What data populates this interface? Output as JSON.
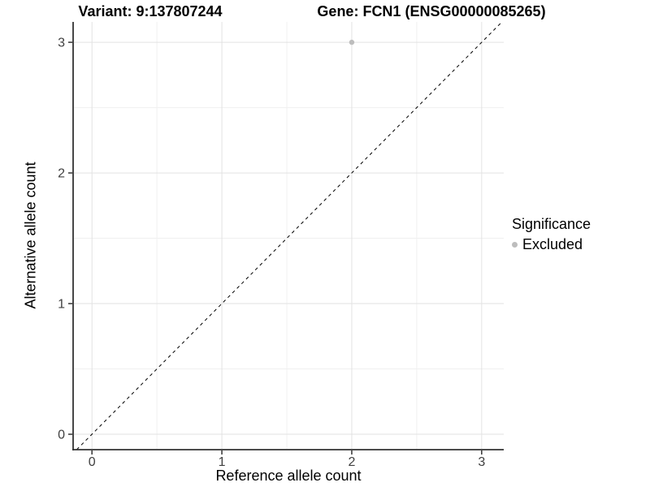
{
  "figure": {
    "title_left": "Variant: 9:137807244",
    "title_right": "Gene: FCN1 (ENSG00000085265)"
  },
  "chart_data": {
    "type": "scatter",
    "title": "Variant: 9:137807244   Gene: FCN1 (ENSG00000085265)",
    "xlabel": "Reference allele count",
    "ylabel": "Alternative allele count",
    "x_ticks": [
      0,
      1,
      2,
      3
    ],
    "y_ticks": [
      0,
      1,
      2,
      3
    ],
    "x_minor": [
      0.5,
      1.5,
      2.5
    ],
    "y_minor": [
      0.5,
      1.5,
      2.5
    ],
    "xlim": [
      -0.145,
      3.17
    ],
    "ylim": [
      -0.118,
      3.156
    ],
    "grid": "major+minor",
    "points": [
      {
        "x": 2,
        "y": 3,
        "series": "Excluded"
      }
    ],
    "point_radius": 3.2,
    "identity_line": {
      "slope": 1,
      "intercept": 0,
      "style": "dashed",
      "color": "#000000"
    },
    "legend": {
      "title": "Significance",
      "position": "right",
      "entries": [
        {
          "label": "Excluded",
          "color": "#bdbdbd"
        }
      ]
    },
    "colors": {
      "panel_bg": "#ffffff",
      "grid_major": "#e2e2e2",
      "grid_minor": "#f0f0f0",
      "axis_line": "#333333",
      "tick_mark": "#333333",
      "tick_text": "#404040",
      "point": "#bdbdbd"
    }
  }
}
